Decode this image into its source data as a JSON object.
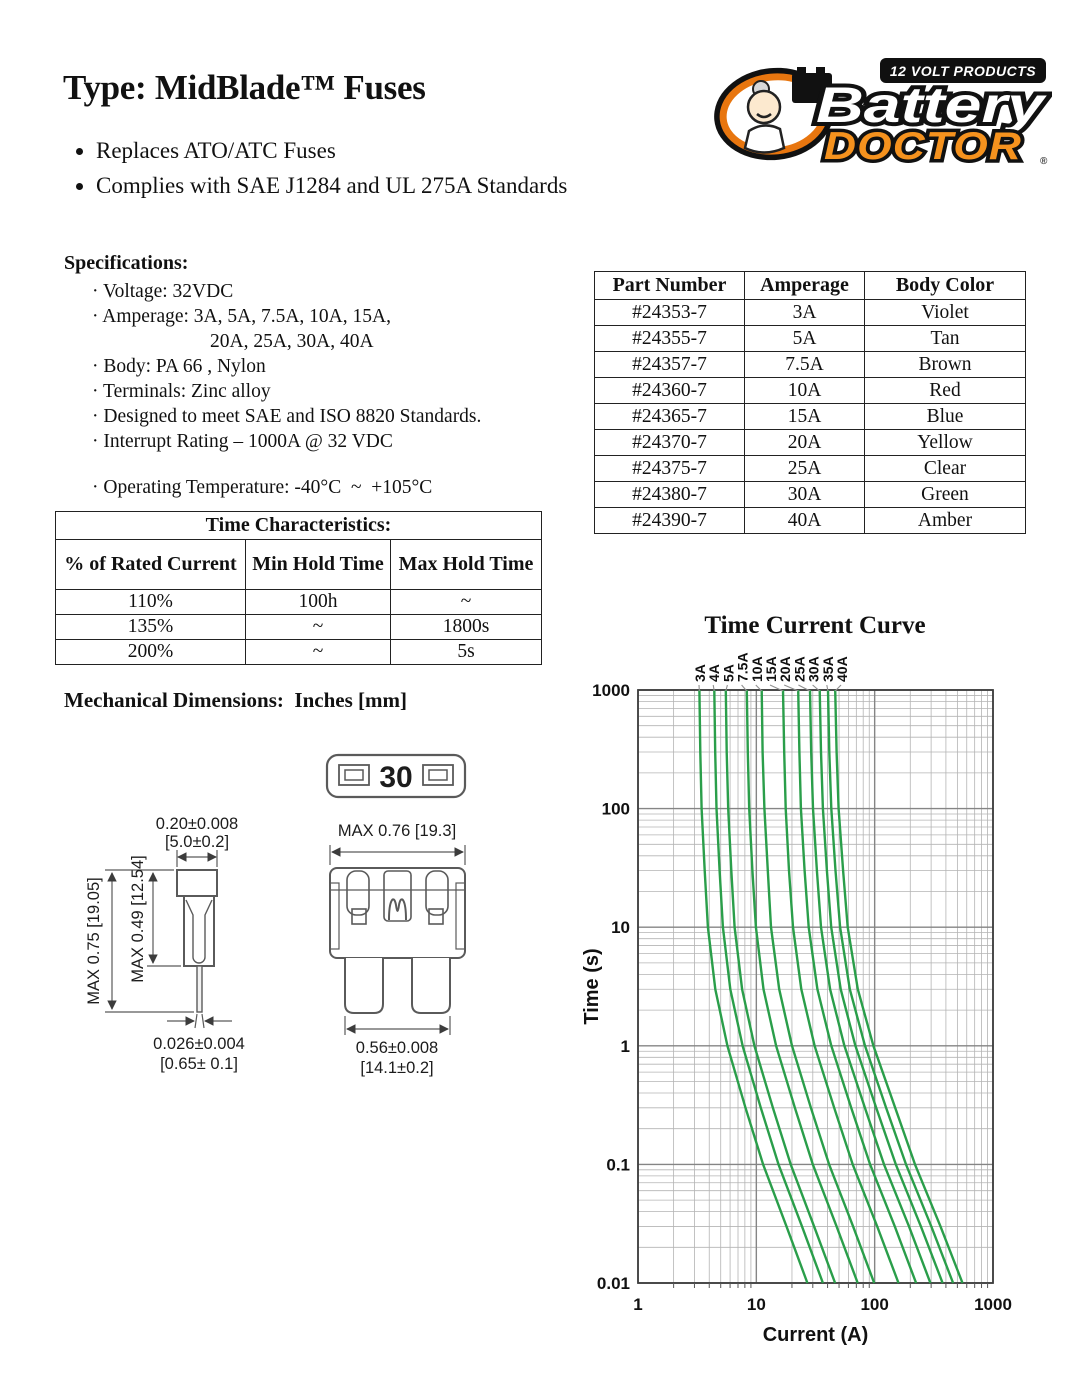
{
  "page": {
    "title": "Type: MidBlade™ Fuses",
    "bullets": [
      "Replaces ATO/ATC Fuses",
      "Complies with SAE J1284 and UL 275A Standards"
    ]
  },
  "logo": {
    "banner": "12 VOLT PRODUCTS",
    "line1": "Battery",
    "line2": "DOCTOR",
    "reg": "®",
    "orange": "#F5921E"
  },
  "specifications": {
    "heading": "Specifications:",
    "items": [
      {
        "text": "· Voltage: 32VDC",
        "indent": false,
        "gap": false
      },
      {
        "text": "· Amperage: 3A, 5A, 7.5A, 10A, 15A,",
        "indent": false,
        "gap": false
      },
      {
        "text": "20A, 25A, 30A, 40A",
        "indent": true,
        "gap": false
      },
      {
        "text": "· Body: PA 66 , Nylon",
        "indent": false,
        "gap": false
      },
      {
        "text": "· Terminals: Zinc alloy",
        "indent": false,
        "gap": false
      },
      {
        "text": "· Designed to meet SAE and ISO 8820 Standards.",
        "indent": false,
        "gap": false
      },
      {
        "text": "· Interrupt Rating – 1000A @ 32 VDC",
        "indent": false,
        "gap": false
      },
      {
        "text": "· Operating Temperature: -40°C  ~  +105°C",
        "indent": false,
        "gap": true
      }
    ]
  },
  "part_table": {
    "headers": [
      "Part Number",
      "Amperage",
      "Body Color"
    ],
    "rows": [
      [
        "#24353-7",
        "3A",
        "Violet"
      ],
      [
        "#24355-7",
        "5A",
        "Tan"
      ],
      [
        "#24357-7",
        "7.5A",
        "Brown"
      ],
      [
        "#24360-7",
        "10A",
        "Red"
      ],
      [
        "#24365-7",
        "15A",
        "Blue"
      ],
      [
        "#24370-7",
        "20A",
        "Yellow"
      ],
      [
        "#24375-7",
        "25A",
        "Clear"
      ],
      [
        "#24380-7",
        "30A",
        "Green"
      ],
      [
        "#24390-7",
        "40A",
        "Amber"
      ]
    ]
  },
  "time_characteristics": {
    "title": "Time Characteristics:",
    "headers": [
      "% of Rated Current",
      "Min Hold Time",
      "Max Hold Time"
    ],
    "rows": [
      [
        "110%",
        "100h",
        "~"
      ],
      [
        "135%",
        "~",
        "1800s"
      ],
      [
        "200%",
        "~",
        "5s"
      ]
    ]
  },
  "mechanical": {
    "heading": "Mechanical Dimensions:  Inches [mm]",
    "top_view_label": "30",
    "side_view": {
      "width_in": "0.20±0.008",
      "width_mm": "[5.0±0.2]",
      "total_height": "MAX 0.75 [19.05]",
      "body_height": "MAX 0.49 [12.54]",
      "pin_in": "0.026±0.004",
      "pin_mm": "[0.65± 0.1]"
    },
    "front_view": {
      "width": "MAX 0.76 [19.3]",
      "blade_in": "0.56±0.008",
      "blade_mm": "[14.1±0.2]"
    }
  },
  "chart_data": {
    "type": "line",
    "title": "Time Current Curve",
    "xlabel": "Current (A)",
    "ylabel": "Time (s)",
    "x_scale": "log",
    "y_scale": "log",
    "xlim": [
      1,
      1000
    ],
    "ylim": [
      0.01,
      1000
    ],
    "x_ticks": [
      1,
      10,
      100,
      1000
    ],
    "y_ticks": [
      1000,
      100,
      10,
      1,
      0.1,
      0.01
    ],
    "grid": "log-log major and minor gridlines",
    "legend_position": "labels rotated above curve tops",
    "curve_color": "#2a9e4a",
    "times": [
      1000,
      300,
      100,
      30,
      10,
      3,
      1,
      0.3,
      0.1,
      0.03,
      0.01
    ],
    "series": [
      {
        "label": "3A",
        "amps": 3,
        "currents": [
          3.3,
          3.36,
          3.45,
          3.66,
          3.9,
          4.5,
          5.7,
          8.1,
          11.4,
          18,
          27
        ]
      },
      {
        "label": "4A",
        "amps": 4,
        "currents": [
          4.41,
          4.49,
          4.61,
          4.89,
          5.22,
          6.03,
          7.66,
          10.9,
          15.4,
          24.3,
          36.5
        ]
      },
      {
        "label": "5A",
        "amps": 5,
        "currents": [
          5.52,
          5.62,
          5.78,
          6.14,
          6.55,
          7.58,
          9.64,
          13.8,
          19.5,
          30.8,
          46.3
        ]
      },
      {
        "label": "7.5A",
        "amps": 7.5,
        "currents": [
          8.3,
          8.47,
          8.71,
          9.27,
          9.91,
          11.5,
          14.7,
          21.2,
          30,
          47.7,
          71.9
        ]
      },
      {
        "label": "10A",
        "amps": 10,
        "currents": [
          11.1,
          11.3,
          11.7,
          12.5,
          13.3,
          15.6,
          20,
          28.9,
          41.2,
          65.7,
          99.1
        ]
      },
      {
        "label": "15A",
        "amps": 15,
        "currents": [
          16.8,
          17.2,
          17.7,
          18.9,
          20.4,
          24,
          31.1,
          45.5,
          65.2,
          105,
          159
        ]
      },
      {
        "label": "20A",
        "amps": 20,
        "currents": [
          22.6,
          23.1,
          23.8,
          25.6,
          27.7,
          32.8,
          43,
          63.4,
          91.5,
          148,
          224
        ]
      },
      {
        "label": "25A",
        "amps": 25,
        "currents": [
          28.4,
          29.1,
          30.1,
          32.5,
          35.2,
          42,
          55.5,
          82.7,
          120,
          195,
          296
        ]
      },
      {
        "label": "30A",
        "amps": 30,
        "currents": [
          34.3,
          35.2,
          36.5,
          39.5,
          42.9,
          51.6,
          68.8,
          103,
          151,
          246,
          375
        ]
      },
      {
        "label": "35A",
        "amps": 35,
        "currents": [
          40.3,
          41.4,
          43,
          46.7,
          51,
          61.6,
          82.9,
          125,
          184,
          301,
          460
        ]
      },
      {
        "label": "40A",
        "amps": 40,
        "currents": [
          46.4,
          47.7,
          49.6,
          54.1,
          59.2,
          72,
          97.6,
          149,
          219,
          360,
          552
        ]
      }
    ]
  }
}
